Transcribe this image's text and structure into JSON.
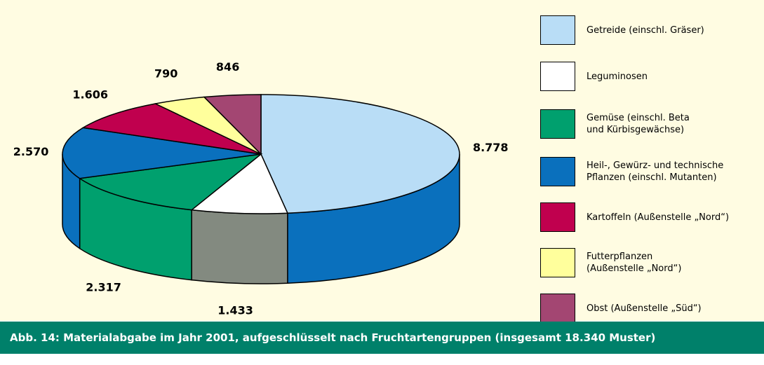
{
  "chart_data": {
    "type": "pie3d",
    "caption": "Abb. 14: Materialabgabe im Jahr 2001, aufgeschlüsselt nach Fruchtartengruppen (insgesamt 18.340 Muster)",
    "series": [
      {
        "name": "Getreide (einschl. Gräser)",
        "color": "#b9ddf6",
        "side_color": "#0a70bd",
        "values": [
          8778
        ],
        "value_labels": [
          "8.778"
        ]
      },
      {
        "name": "Leguminosen",
        "color": "#ffffff",
        "side_color": "#838a80",
        "values": [
          1433
        ],
        "value_labels": [
          "1.433"
        ]
      },
      {
        "name": "Gemüse (einschl. Beta und Kürbisgewächse)",
        "color": "#00a06e",
        "side_color": "#00a06e",
        "values": [
          2317
        ],
        "value_labels": [
          "2.317"
        ]
      },
      {
        "name": "Heil-, Gewürz- und technische Pflanzen (einschl. Mutanten)",
        "color": "#0a70bd",
        "side_color": "#0a70bd",
        "values": [
          2570
        ],
        "value_labels": [
          "2.570"
        ]
      },
      {
        "name": "Kartoffeln (Außenstelle „Nord“)",
        "color": "#c0004e",
        "side_color": "#c0004e",
        "values": [
          1606
        ],
        "value_labels": [
          "1.606"
        ]
      },
      {
        "name": "Futterpflanzen (Außenstelle „Nord“)",
        "color": "#ffff9c",
        "side_color": "#ffff9c",
        "values": [
          790
        ],
        "value_labels": [
          "790"
        ]
      },
      {
        "name": "Obst (Außenstelle „Süd“)",
        "color": "#a34672",
        "side_color": "#a34672",
        "values": [
          846
        ],
        "value_labels": [
          "846"
        ]
      }
    ]
  }
}
